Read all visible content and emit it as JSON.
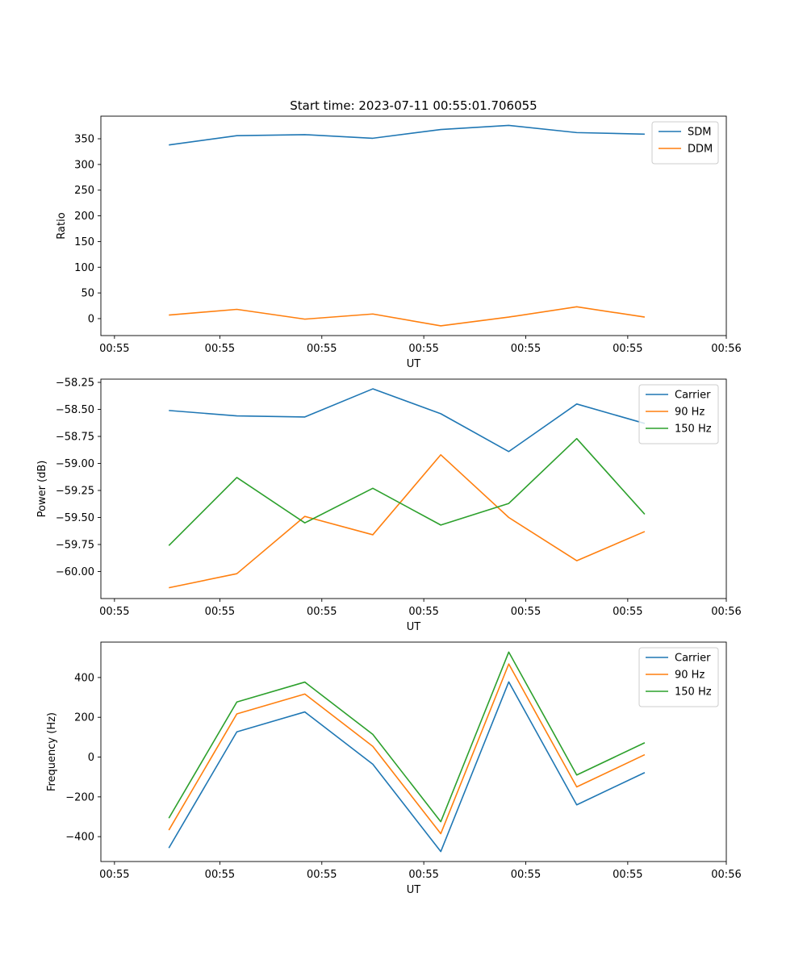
{
  "chart_data": [
    {
      "type": "line",
      "title": "Start time: 2023-07-11 00:55:01.706055",
      "xlabel": "UT",
      "ylabel": "Ratio",
      "xlim": [
        0,
        9.2
      ],
      "ylim": [
        -33,
        394
      ],
      "x": [
        1,
        2,
        3,
        4,
        5,
        6,
        7,
        8
      ],
      "xticks": [
        0.2,
        1.75,
        3.25,
        4.75,
        6.25,
        7.75,
        9.2
      ],
      "xtick_labels": [
        "00:55",
        "00:55",
        "00:55",
        "00:55",
        "00:55",
        "00:55",
        "00:56"
      ],
      "yticks": [
        0,
        50,
        100,
        150,
        200,
        250,
        300,
        350
      ],
      "ytick_labels": [
        "0",
        "50",
        "100",
        "150",
        "200",
        "250",
        "300",
        "350"
      ],
      "legend_position": "top-right",
      "series": [
        {
          "name": "SDM",
          "color": "#1f77b4",
          "values": [
            338,
            356,
            358,
            351,
            368,
            376,
            362,
            359
          ]
        },
        {
          "name": "DDM",
          "color": "#ff7f0e",
          "values": [
            7,
            18,
            -1,
            9,
            -14,
            3,
            23,
            3
          ]
        }
      ]
    },
    {
      "type": "line",
      "title": "",
      "xlabel": "UT",
      "ylabel": "Power (dB)",
      "xlim": [
        0,
        9.2
      ],
      "ylim": [
        -60.25,
        -58.22
      ],
      "x": [
        1,
        2,
        3,
        4,
        5,
        6,
        7,
        8
      ],
      "xticks": [
        0.2,
        1.75,
        3.25,
        4.75,
        6.25,
        7.75,
        9.2
      ],
      "xtick_labels": [
        "00:55",
        "00:55",
        "00:55",
        "00:55",
        "00:55",
        "00:55",
        "00:56"
      ],
      "yticks": [
        -60.0,
        -59.75,
        -59.5,
        -59.25,
        -59.0,
        -58.75,
        -58.5,
        -58.25
      ],
      "ytick_labels": [
        "−60.00",
        "−59.75",
        "−59.50",
        "−59.25",
        "−59.00",
        "−58.75",
        "−58.50",
        "−58.25"
      ],
      "legend_position": "top-right",
      "series": [
        {
          "name": "Carrier",
          "color": "#1f77b4",
          "values": [
            -58.51,
            -58.56,
            -58.57,
            -58.31,
            -58.54,
            -58.89,
            -58.45,
            -58.63
          ]
        },
        {
          "name": "90 Hz",
          "color": "#ff7f0e",
          "values": [
            -60.15,
            -60.02,
            -59.49,
            -59.66,
            -58.92,
            -59.5,
            -59.9,
            -59.63
          ]
        },
        {
          "name": "150 Hz",
          "color": "#2ca02c",
          "values": [
            -59.76,
            -59.13,
            -59.55,
            -59.23,
            -59.57,
            -59.37,
            -58.77,
            -59.47
          ]
        }
      ]
    },
    {
      "type": "line",
      "title": "",
      "xlabel": "UT",
      "ylabel": "Frequency (Hz)",
      "xlim": [
        0,
        9.2
      ],
      "ylim": [
        -525,
        578
      ],
      "x": [
        1,
        2,
        3,
        4,
        5,
        6,
        7,
        8
      ],
      "xticks": [
        0.2,
        1.75,
        3.25,
        4.75,
        6.25,
        7.75,
        9.2
      ],
      "xtick_labels": [
        "00:55",
        "00:55",
        "00:55",
        "00:55",
        "00:55",
        "00:55",
        "00:56"
      ],
      "yticks": [
        -400,
        -200,
        0,
        200,
        400
      ],
      "ytick_labels": [
        "−400",
        "−200",
        "0",
        "200",
        "400"
      ],
      "legend_position": "top-right",
      "series": [
        {
          "name": "Carrier",
          "color": "#1f77b4",
          "values": [
            -457,
            127,
            227,
            -36,
            -475,
            378,
            -240,
            -78
          ]
        },
        {
          "name": "90 Hz",
          "color": "#ff7f0e",
          "values": [
            -367,
            217,
            317,
            54,
            -385,
            468,
            -150,
            12
          ]
        },
        {
          "name": "150 Hz",
          "color": "#2ca02c",
          "values": [
            -307,
            277,
            377,
            114,
            -325,
            528,
            -90,
            72
          ]
        }
      ]
    }
  ]
}
